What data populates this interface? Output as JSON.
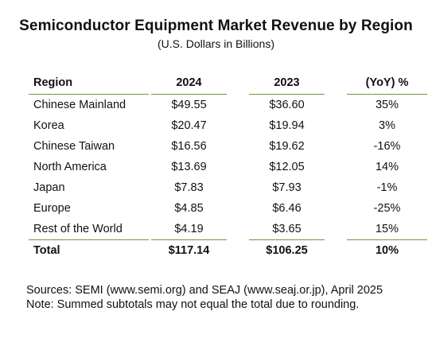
{
  "title": "Semiconductor Equipment Market Revenue by Region",
  "subtitle": "(U.S. Dollars in Billions)",
  "table": {
    "headers": {
      "region": "Region",
      "y2024": "2024",
      "y2023": "2023",
      "yoy": "(YoY) %"
    },
    "rows": [
      {
        "region": "Chinese Mainland",
        "y2024": "$49.55",
        "y2023": "$36.60",
        "yoy": "35%"
      },
      {
        "region": "Korea",
        "y2024": "$20.47",
        "y2023": "$19.94",
        "yoy": "3%"
      },
      {
        "region": "Chinese Taiwan",
        "y2024": "$16.56",
        "y2023": "$19.62",
        "yoy": "-16%"
      },
      {
        "region": "North America",
        "y2024": "$13.69",
        "y2023": "$12.05",
        "yoy": "14%"
      },
      {
        "region": "Japan",
        "y2024": "$7.83",
        "y2023": "$7.93",
        "yoy": "-1%"
      },
      {
        "region": "Europe",
        "y2024": "$4.85",
        "y2023": "$6.46",
        "yoy": "-25%"
      },
      {
        "region": "Rest of the World",
        "y2024": "$4.19",
        "y2023": "$3.65",
        "yoy": "15%"
      }
    ],
    "total": {
      "region": "Total",
      "y2024": "$117.14",
      "y2023": "$106.25",
      "yoy": "10%"
    }
  },
  "notes": {
    "sources": "Sources: SEMI (www.semi.org) and SEAJ (www.seaj.or.jp), April 2025",
    "rounding": "Note: Summed subtotals may not equal the total due to rounding."
  },
  "colors": {
    "rule": "#6e9a3a",
    "text": "#111111"
  }
}
